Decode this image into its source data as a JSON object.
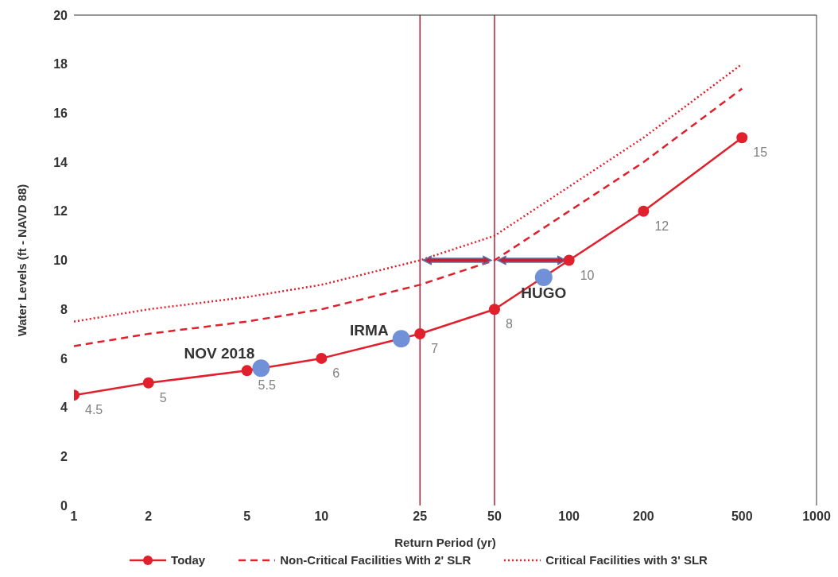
{
  "chart_data": {
    "type": "line",
    "xlabel": "Return Period (yr)",
    "ylabel": "Water Levels (ft - NAVD 88)",
    "log": "x",
    "xlim": [
      1,
      1000
    ],
    "xticks": [
      1,
      2,
      5,
      10,
      25,
      50,
      100,
      200,
      500,
      1000
    ],
    "ylim": [
      0,
      20
    ],
    "yticks": [
      0,
      2,
      4,
      6,
      8,
      10,
      12,
      14,
      16,
      18,
      20
    ],
    "legend": "bottom",
    "series": [
      {
        "name": "Today",
        "color": "#e0202c",
        "marker": "circle",
        "line_style": "solid",
        "x": [
          1,
          2,
          5,
          10,
          25,
          50,
          100,
          200,
          500
        ],
        "values": [
          4.5,
          5,
          5.5,
          6,
          7,
          8,
          10,
          12,
          15
        ],
        "value_labels": [
          "4.5",
          "5",
          "5.5",
          "6",
          "7",
          "8",
          "10",
          "12",
          "15"
        ]
      },
      {
        "name": "Non-Critical Facilities With 2' SLR",
        "color": "#e0202c",
        "marker": "none",
        "line_style": "dashed",
        "x": [
          1,
          2,
          5,
          10,
          25,
          50,
          100,
          200,
          500
        ],
        "values": [
          6.5,
          7,
          7.5,
          8,
          9,
          10,
          12,
          14,
          17
        ]
      },
      {
        "name": "Critical Facilities with 3' SLR",
        "color": "#e0202c",
        "marker": "none",
        "line_style": "dotted",
        "x": [
          1,
          2,
          5,
          10,
          25,
          50,
          100,
          200,
          500
        ],
        "values": [
          7.5,
          8,
          8.5,
          9,
          10,
          11,
          13,
          15,
          18
        ]
      },
      {
        "type": "scatter",
        "color": "#7090d8",
        "marker": "circle",
        "x": [
          5.7,
          21,
          79
        ],
        "values": [
          5.6,
          6.8,
          9.3
        ]
      }
    ],
    "ref_lines": [
      {
        "axis": "x",
        "value": 25,
        "color": "#c0203a"
      },
      {
        "axis": "x",
        "value": 50,
        "color": "#c0203a"
      }
    ],
    "annotations": [
      {
        "text": "NOV 2018",
        "x": 5.7,
        "y": 5.6
      },
      {
        "text": "IRMA",
        "x": 21,
        "y": 6.8
      },
      {
        "text": "HUGO",
        "x": 79,
        "y": 9.3
      }
    ]
  }
}
